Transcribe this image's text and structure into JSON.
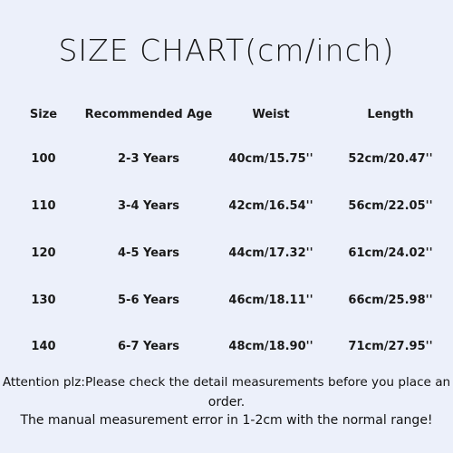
{
  "title": "SIZE CHART(cm/inch)",
  "table": {
    "headers": [
      "Size",
      "Recommended Age",
      "Weist",
      "Length"
    ],
    "rows": [
      [
        "100",
        "2-3 Years",
        "40cm/15.75''",
        "52cm/20.47''"
      ],
      [
        "110",
        "3-4 Years",
        "42cm/16.54''",
        "56cm/22.05''"
      ],
      [
        "120",
        "4-5 Years",
        "44cm/17.32''",
        "61cm/24.02''"
      ],
      [
        "130",
        "5-6 Years",
        "46cm/18.11''",
        "66cm/25.98''"
      ],
      [
        "140",
        "6-7 Years",
        "48cm/18.90''",
        "71cm/27.95''"
      ]
    ]
  },
  "notes": {
    "line1": "Attention plz:Please check the detail measurements before you place an",
    "line2": "order.",
    "line3": "The manual measurement error in 1-2cm with the normal range!"
  }
}
